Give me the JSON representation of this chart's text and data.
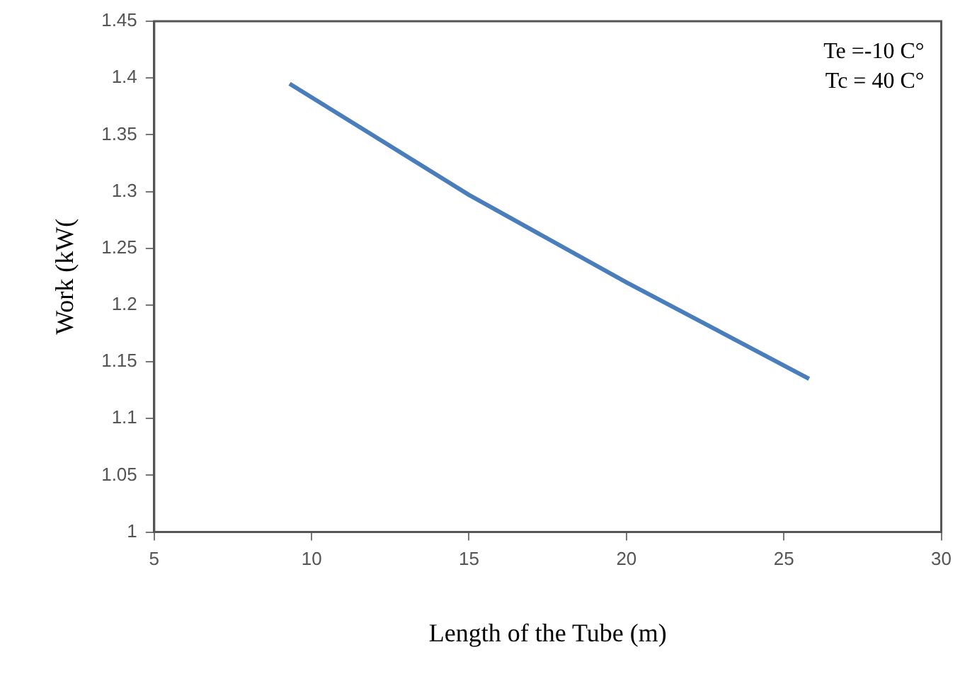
{
  "chart_data": {
    "type": "line",
    "xlabel": "Length of the Tube (m)",
    "ylabel": "Work (kW(",
    "x": [
      9.3,
      15,
      20,
      25.8
    ],
    "series": [
      {
        "color": "#4a7ebb",
        "values": [
          1.395,
          1.297,
          1.22,
          1.135
        ]
      }
    ],
    "xlim": [
      5,
      30
    ],
    "xticks": [
      5,
      10,
      15,
      20,
      25,
      30
    ],
    "ylim": [
      1,
      1.45
    ],
    "yticks": [
      1,
      1.05,
      1.1,
      1.15,
      1.2,
      1.25,
      1.3,
      1.35,
      1.4,
      1.45
    ],
    "annotations": [
      "Te =-10 C°",
      "Tc = 40 C°"
    ],
    "grid": false,
    "legend": false,
    "marker": "none"
  }
}
